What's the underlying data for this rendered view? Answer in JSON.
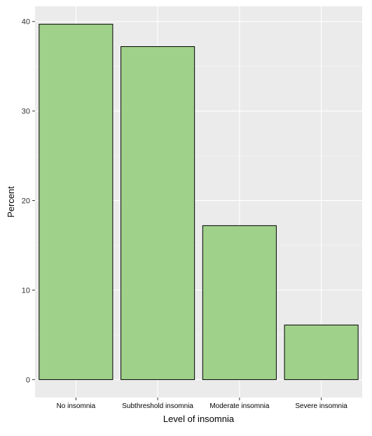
{
  "chart_data": {
    "type": "bar",
    "categories": [
      "No insomnia",
      "Subthreshold insomnia",
      "Moderate insomnia",
      "Severe insomnia"
    ],
    "values": [
      39.7,
      37.2,
      17.2,
      6.1
    ],
    "xlabel": "Level of insomnia",
    "ylabel": "Percent",
    "ylim": [
      -2,
      41.7
    ],
    "yticks": [
      0,
      10,
      20,
      30,
      40
    ],
    "ytick_labels": [
      "0",
      "10",
      "20",
      "30",
      "40"
    ],
    "grid": true,
    "legend": "none",
    "colors": {
      "bar_fill": "#9fd18a",
      "bar_stroke": "#000000",
      "panel_bg": "#ebebeb",
      "grid_major": "#ffffff",
      "grid_minor": "#f5f5f5",
      "text": "#000000",
      "tick": "#333333"
    }
  }
}
